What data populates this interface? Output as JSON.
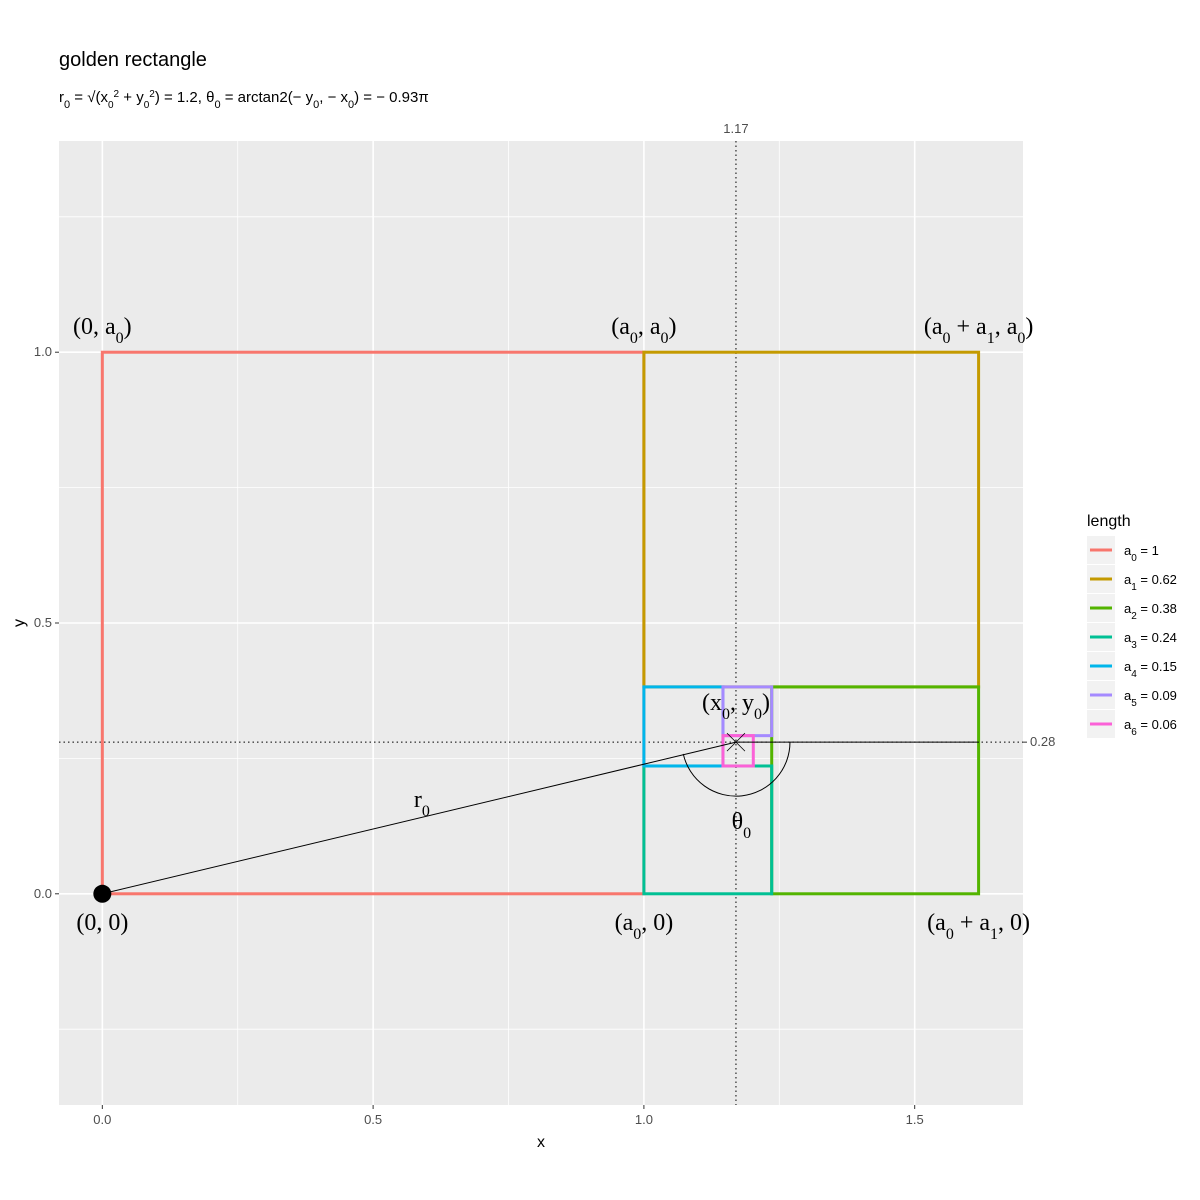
{
  "chart_data": {
    "type": "line",
    "title": "golden rectangle",
    "subtitle": {
      "r0": "r",
      "r0_sub": "0",
      "eq1": " = ",
      "x0": "x",
      "y0": "y",
      "sup2": "2",
      "plus": " + ",
      "val": " = 1.2, ",
      "theta": "θ",
      "theta_sub": "0",
      "eq2": " = arctan2(− y",
      "comma": ", − x",
      "rest": ") = − 0.93π"
    },
    "xlabel": "x",
    "ylabel": "y",
    "xlim": [
      -0.08,
      1.7
    ],
    "ylim": [
      -0.39,
      1.39
    ],
    "x_ticks": [
      0.0,
      0.5,
      1.0,
      1.5
    ],
    "x_tick_labels": [
      "0.0",
      "0.5",
      "1.0",
      "1.5"
    ],
    "y_ticks": [
      0.0,
      0.5,
      1.0
    ],
    "y_tick_labels": [
      "0.0",
      "0.5",
      "1.0"
    ],
    "grid": true,
    "legend_title": "length",
    "legend_position": "right",
    "series": [
      {
        "name": "a0 = 1",
        "sym": "a",
        "sub": "0",
        "val": " = 1",
        "color": "#F8766D",
        "rect": [
          0,
          0,
          1,
          1
        ]
      },
      {
        "name": "a1 = 0.62",
        "sym": "a",
        "sub": "1",
        "val": " = 0.62",
        "color": "#C49A00",
        "rect": [
          1,
          0.382,
          1.618,
          1
        ]
      },
      {
        "name": "a2 = 0.38",
        "sym": "a",
        "sub": "2",
        "val": " = 0.38",
        "color": "#53B400",
        "rect": [
          1.236,
          0,
          1.618,
          0.382
        ]
      },
      {
        "name": "a3 = 0.24",
        "sym": "a",
        "sub": "3",
        "val": " = 0.24",
        "color": "#00C094",
        "rect": [
          1,
          0,
          1.236,
          0.236
        ]
      },
      {
        "name": "a4 = 0.15",
        "sym": "a",
        "sub": "4",
        "val": " = 0.15",
        "color": "#00B6EB",
        "rect": [
          1,
          0.236,
          1.146,
          0.382
        ]
      },
      {
        "name": "a5 = 0.09",
        "sym": "a",
        "sub": "5",
        "val": " = 0.09",
        "color": "#A58AFF",
        "rect": [
          1.146,
          0.292,
          1.236,
          0.382
        ]
      },
      {
        "name": "a6 = 0.06",
        "sym": "a",
        "sub": "6",
        "val": " = 0.06",
        "color": "#FB61D7",
        "rect": [
          1.146,
          0.236,
          1.202,
          0.292
        ]
      }
    ],
    "origin_point": [
      0,
      0
    ],
    "center_point": [
      1.17,
      0.28
    ],
    "radius_label": "r",
    "radius_label_sub": "0",
    "radius_label_pos": [
      0.59,
      0.16
    ],
    "angle_label": "θ",
    "angle_label_sub": "0",
    "angle_label_pos": [
      1.18,
      0.12
    ],
    "vline": {
      "x": 1.17,
      "label": "1.17"
    },
    "hline": {
      "y": 0.28,
      "label": "0.28"
    },
    "annotations": [
      {
        "parts": [
          [
            "(",
            ""
          ],
          [
            "a",
            "0"
          ],
          [
            ", ",
            ""
          ],
          [
            "a",
            "0"
          ],
          [
            ")",
            ""
          ]
        ],
        "x": 1.0,
        "y": 1.0,
        "dy": -18
      },
      {
        "parts": [
          [
            "(0, ",
            ""
          ],
          [
            "a",
            "0"
          ],
          [
            ")",
            ""
          ]
        ],
        "x": 0.0,
        "y": 1.0,
        "dy": -18
      },
      {
        "parts": [
          [
            "(",
            ""
          ],
          [
            "a",
            "0"
          ],
          [
            " + ",
            ""
          ],
          [
            "a",
            "1"
          ],
          [
            ", ",
            ""
          ],
          [
            "a",
            "0"
          ],
          [
            ")",
            ""
          ]
        ],
        "x": 1.618,
        "y": 1.0,
        "dy": -18
      },
      {
        "parts": [
          [
            "(0, 0)",
            ""
          ]
        ],
        "x": 0.0,
        "y": 0.0,
        "dy": 36
      },
      {
        "parts": [
          [
            "(",
            ""
          ],
          [
            "a",
            "0"
          ],
          [
            ", 0)",
            ""
          ]
        ],
        "x": 1.0,
        "y": 0.0,
        "dy": 36
      },
      {
        "parts": [
          [
            "(",
            ""
          ],
          [
            "a",
            "0"
          ],
          [
            " + ",
            ""
          ],
          [
            "a",
            "1"
          ],
          [
            ", 0)",
            ""
          ]
        ],
        "x": 1.618,
        "y": 0.0,
        "dy": 36
      },
      {
        "parts": [
          [
            "(",
            ""
          ],
          [
            "x",
            "0"
          ],
          [
            ", ",
            ""
          ],
          [
            "y",
            "0"
          ],
          [
            ")",
            ""
          ]
        ],
        "x": 1.17,
        "y": 0.28,
        "dy": -32
      }
    ]
  }
}
